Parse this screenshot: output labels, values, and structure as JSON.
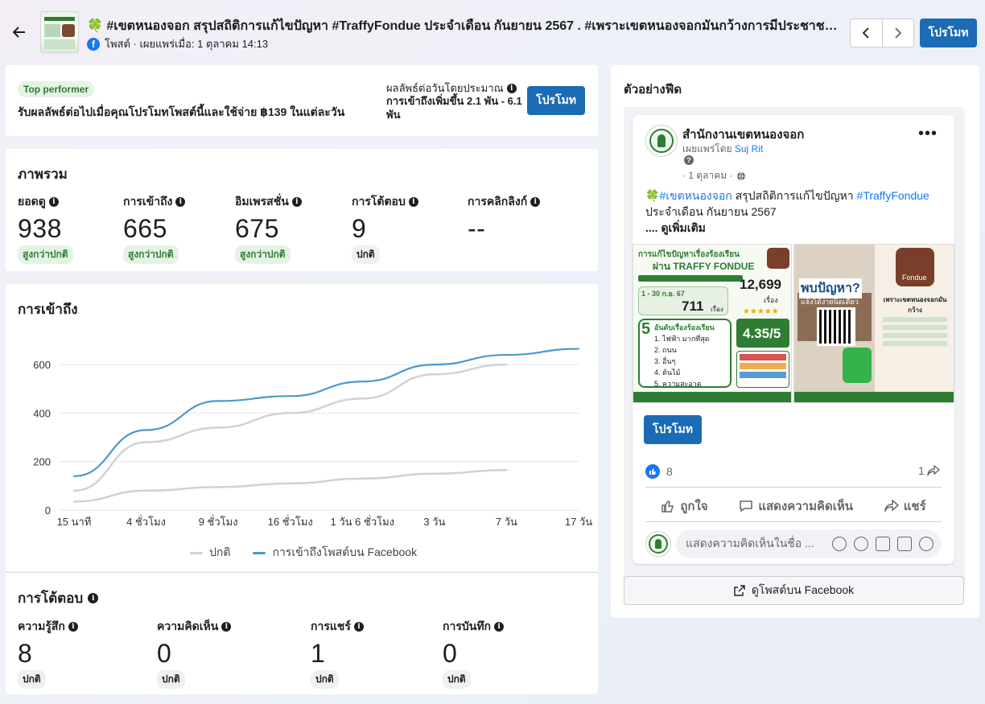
{
  "header": {
    "title": "🍀 #เขตหนองจอก สรุปสถิติการแก้ไขปัญหา #TraffyFondue ประจำเดือน กันยายน 2567 . #เพราะเขตหนองจอกมันกว้างการมีประชาชนเ...",
    "meta": "โพสต์ · เผยแพร่เมื่อ: 1 ตุลาคม 14:13",
    "promote_label": "โปรโมท"
  },
  "top_performer": {
    "badge": "Top performer",
    "text": "รับผลลัพธ์ต่อไปเมื่อคุณโปรโมทโพสต์นี้และใช้จ่าย ฿139 ในแต่ละวัน",
    "estimate_label": "ผลลัพธ์ต่อวันโดยประมาณ",
    "estimate_value": "การเข้าถึงเพิ่มขึ้น 2.1 พัน - 6.1 พัน",
    "promote_label": "โปรโมท"
  },
  "overview": {
    "title": "ภาพรวม",
    "metrics": [
      {
        "label": "ยอดดู",
        "value": "938",
        "badge": "สูงกว่าปกติ"
      },
      {
        "label": "การเข้าถึง",
        "value": "665",
        "badge": "สูงกว่าปกติ"
      },
      {
        "label": "อิมเพรสชั่น",
        "value": "675",
        "badge": "สูงกว่าปกติ"
      },
      {
        "label": "การโต้ตอบ",
        "value": "9",
        "badge": "ปกติ"
      },
      {
        "label": "การคลิกลิงก์",
        "value": "--",
        "badge": ""
      }
    ]
  },
  "reach": {
    "title": "การเข้าถึง",
    "legend_normal": "ปกติ",
    "legend_facebook": "การเข้าถึงโพสต์บน Facebook"
  },
  "chart_data": {
    "type": "line",
    "x": [
      "15 นาที",
      "4 ชั่วโมง",
      "9 ชั่วโมง",
      "16 ชั่วโมง",
      "1 วัน 6 ชั่วโมง",
      "3 วัน",
      "7 วัน",
      "17 วัน"
    ],
    "ylim": [
      0,
      700
    ],
    "yticks": [
      0,
      200,
      400,
      600
    ],
    "grid": true,
    "legend": "bottom",
    "series": [
      {
        "name": "การเข้าถึงโพสต์บน Facebook",
        "color": "#4a98d1",
        "values": [
          140,
          330,
          450,
          470,
          530,
          600,
          640,
          665
        ]
      },
      {
        "name": "ปกติ",
        "color": "#d0d2d5",
        "band": "upper",
        "values": [
          80,
          280,
          340,
          400,
          460,
          560,
          600,
          null
        ]
      },
      {
        "name": "ปกติ",
        "color": "#d0d2d5",
        "band": "lower",
        "values": [
          35,
          80,
          95,
          110,
          130,
          150,
          165,
          null
        ]
      }
    ]
  },
  "engagement": {
    "title": "การโต้ตอบ",
    "metrics": [
      {
        "label": "ความรู้สึก",
        "value": "8",
        "badge": "ปกติ"
      },
      {
        "label": "ความคิดเห็น",
        "value": "0",
        "badge": "ปกติ"
      },
      {
        "label": "การแชร์",
        "value": "1",
        "badge": "ปกติ"
      },
      {
        "label": "การบันทึก",
        "value": "0",
        "badge": "ปกติ"
      }
    ]
  },
  "feed": {
    "title": "ตัวอย่างฟีด",
    "page_name": "สำนักงานเขตหนองจอก",
    "published_by_prefix": "เผยแพร่โดย",
    "published_by_name": "Suj Rit",
    "date": "· 1 ตุลาคม ·",
    "text_hashtag1": "#เขตหนองจอก",
    "text_mid": " สรุปสถิติการแก้ไขปัญหา ",
    "text_hashtag2": "#TraffyFondue",
    "text_end": " ประจำเดือน กันยายน 2567",
    "see_more": ".... ดูเพิ่มเติม",
    "promote_label": "โปรโมท",
    "like_count": "8",
    "share_count": "1",
    "action_like": "ถูกใจ",
    "action_comment": "แสดงความคิดเห็น",
    "action_share": "แชร์",
    "comment_placeholder": "แสดงความคิดเห็นในชื่อ ...",
    "view_on_fb": "ดูโพสต์บน Facebook",
    "image_left": {
      "headline1": "การแก้ไขปัญหาเรื่องร้องเรียน",
      "headline2": "ผ่าน TRAFFY FONDUE",
      "total": "12,699",
      "total_unit": "เรื่อง",
      "month_label": "1 - 30 ก.ย. 67",
      "month_value": "711",
      "month_unit": "เรื่อง",
      "rating": "4.35/5",
      "top5_title": "อันดับเรื่องร้องเรียน",
      "top5": [
        "1. ไฟฟ้า มากที่สุด",
        "2. ถนน",
        "3. อื่นๆ",
        "4. ต้นไม้",
        "5. ความสะอาด"
      ]
    },
    "image_right": {
      "headline": "พบปัญหา?",
      "sub": "แจ้งได้ง่ายนิดเดียว",
      "tagline": "เพราะเขตหนองจอกมันกว้าง",
      "brand": "Fondue"
    }
  }
}
